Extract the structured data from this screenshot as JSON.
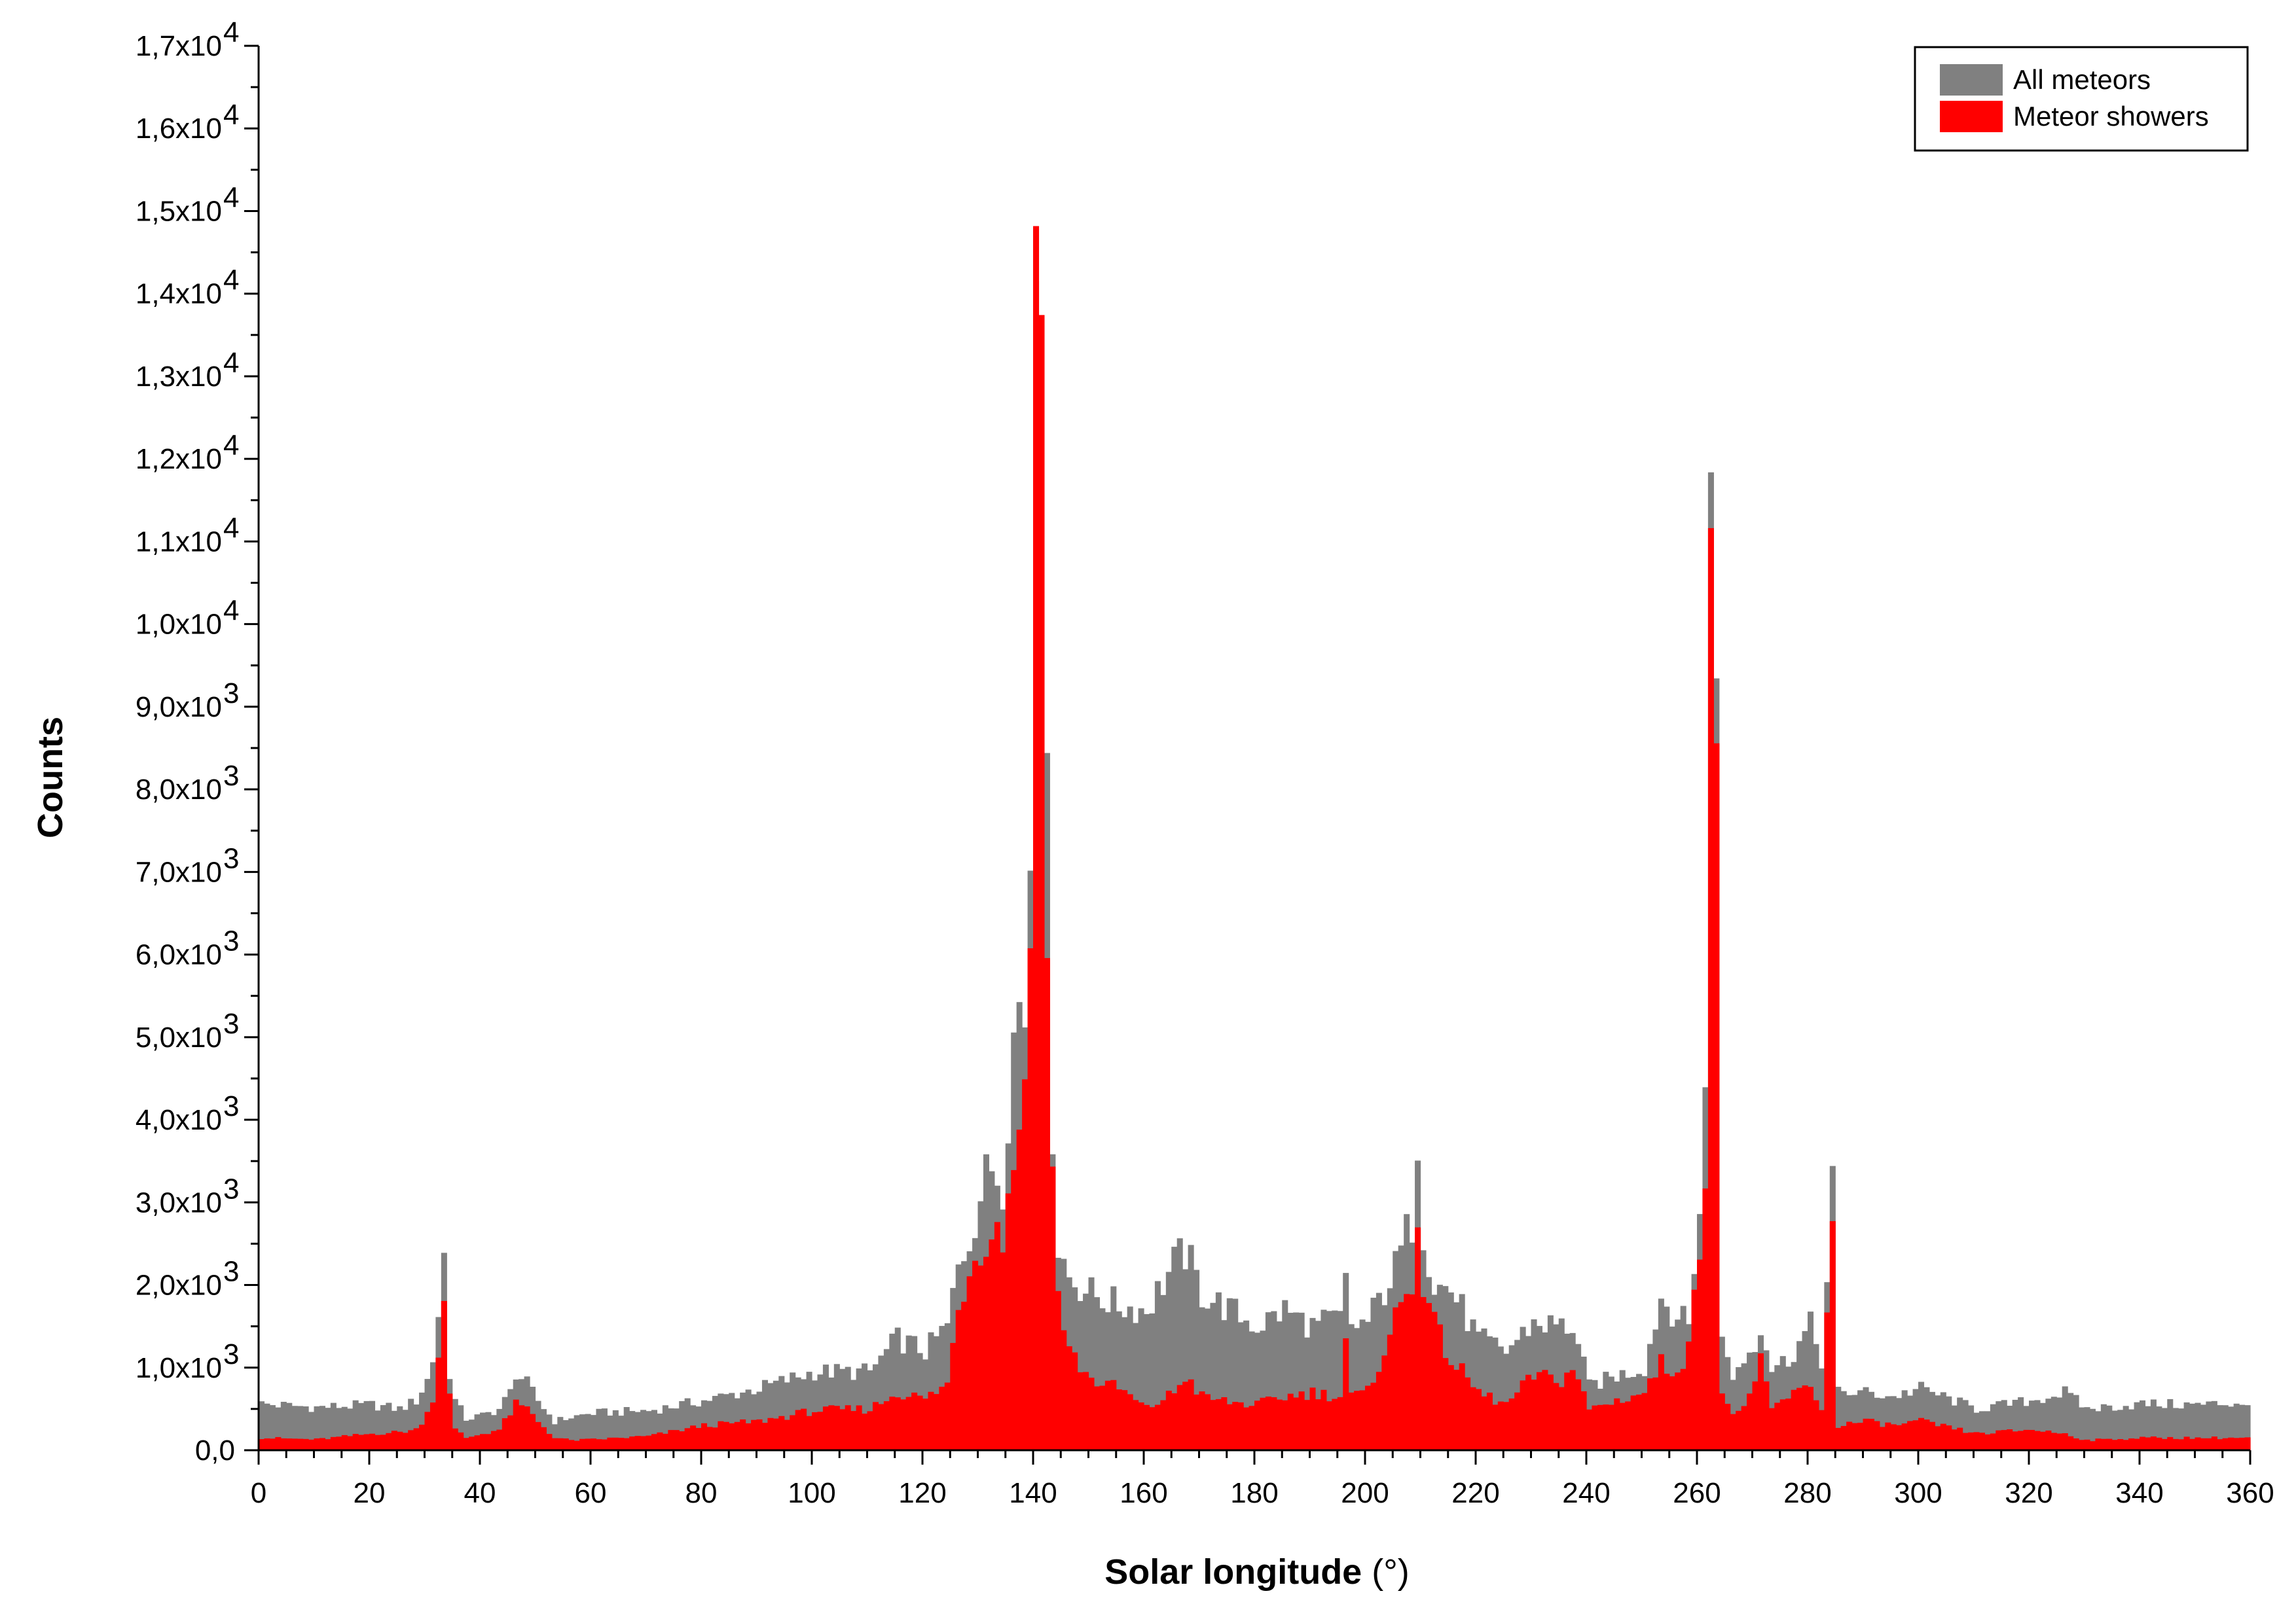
{
  "chart_data": {
    "type": "bar",
    "subtype": "overlaid-histogram",
    "xlabel": "Solar longitude",
    "xlabel_unit": "(°)",
    "ylabel": "Counts",
    "xlim": [
      0,
      360
    ],
    "ylim": [
      0,
      17000
    ],
    "bin_width": 1,
    "x_ticks": [
      0,
      20,
      40,
      60,
      80,
      100,
      120,
      140,
      160,
      180,
      200,
      220,
      240,
      260,
      280,
      300,
      320,
      340,
      360
    ],
    "y_ticks": [
      {
        "value": 0,
        "label": "0,0",
        "exp": ""
      },
      {
        "value": 1000,
        "label": "1,0x10",
        "exp": "3"
      },
      {
        "value": 2000,
        "label": "2,0x10",
        "exp": "3"
      },
      {
        "value": 3000,
        "label": "3,0x10",
        "exp": "3"
      },
      {
        "value": 4000,
        "label": "4,0x10",
        "exp": "3"
      },
      {
        "value": 5000,
        "label": "5,0x10",
        "exp": "3"
      },
      {
        "value": 6000,
        "label": "6,0x10",
        "exp": "3"
      },
      {
        "value": 7000,
        "label": "7,0x10",
        "exp": "3"
      },
      {
        "value": 8000,
        "label": "8,0x10",
        "exp": "3"
      },
      {
        "value": 9000,
        "label": "9,0x10",
        "exp": "3"
      },
      {
        "value": 10000,
        "label": "1,0x10",
        "exp": "4"
      },
      {
        "value": 11000,
        "label": "1,1x10",
        "exp": "4"
      },
      {
        "value": 12000,
        "label": "1,2x10",
        "exp": "4"
      },
      {
        "value": 13000,
        "label": "1,3x10",
        "exp": "4"
      },
      {
        "value": 14000,
        "label": "1,4x10",
        "exp": "4"
      },
      {
        "value": 15000,
        "label": "1,5x10",
        "exp": "4"
      },
      {
        "value": 16000,
        "label": "1,6x10",
        "exp": "4"
      },
      {
        "value": 17000,
        "label": "1,7x10",
        "exp": "4"
      }
    ],
    "legend": {
      "position": "top-right",
      "entries": [
        {
          "name": "All meteors",
          "color": "#808080"
        },
        {
          "name": "Meteor showers",
          "color": "#ff0000"
        }
      ]
    },
    "series_profile_points": [
      {
        "name": "All meteors",
        "color": "#808080",
        "points": [
          [
            0,
            560
          ],
          [
            10,
            520
          ],
          [
            20,
            550
          ],
          [
            25,
            500
          ],
          [
            28,
            600
          ],
          [
            30,
            850
          ],
          [
            31,
            1100
          ],
          [
            32,
            1650
          ],
          [
            33,
            2350
          ],
          [
            34,
            950
          ],
          [
            35,
            600
          ],
          [
            37,
            380
          ],
          [
            40,
            420
          ],
          [
            43,
            500
          ],
          [
            45,
            700
          ],
          [
            46,
            950
          ],
          [
            48,
            800
          ],
          [
            50,
            600
          ],
          [
            53,
            350
          ],
          [
            56,
            400
          ],
          [
            60,
            450
          ],
          [
            70,
            480
          ],
          [
            80,
            600
          ],
          [
            90,
            750
          ],
          [
            100,
            950
          ],
          [
            110,
            950
          ],
          [
            115,
            1350
          ],
          [
            120,
            1200
          ],
          [
            124,
            1500
          ],
          [
            126,
            2200
          ],
          [
            128,
            2600
          ],
          [
            130,
            3100
          ],
          [
            132,
            3450
          ],
          [
            134,
            3300
          ],
          [
            135,
            4200
          ],
          [
            136,
            5000
          ],
          [
            137,
            5400
          ],
          [
            138,
            5300
          ],
          [
            139,
            7300
          ],
          [
            140,
            15800
          ],
          [
            141,
            15100
          ],
          [
            142,
            7600
          ],
          [
            143,
            4000
          ],
          [
            144,
            2500
          ],
          [
            146,
            2100
          ],
          [
            150,
            1900
          ],
          [
            155,
            1750
          ],
          [
            160,
            1700
          ],
          [
            165,
            2250
          ],
          [
            167,
            2400
          ],
          [
            170,
            1900
          ],
          [
            175,
            1700
          ],
          [
            180,
            1500
          ],
          [
            185,
            1700
          ],
          [
            190,
            1500
          ],
          [
            195,
            1600
          ],
          [
            196,
            2000
          ],
          [
            197,
            1500
          ],
          [
            200,
            1550
          ],
          [
            205,
            2200
          ],
          [
            208,
            2800
          ],
          [
            209,
            3850
          ],
          [
            210,
            2700
          ],
          [
            212,
            2000
          ],
          [
            215,
            1950
          ],
          [
            220,
            1350
          ],
          [
            225,
            1200
          ],
          [
            230,
            1550
          ],
          [
            235,
            1500
          ],
          [
            237,
            1500
          ],
          [
            240,
            780
          ],
          [
            245,
            900
          ],
          [
            250,
            1000
          ],
          [
            253,
            1850
          ],
          [
            255,
            1700
          ],
          [
            258,
            1500
          ],
          [
            259,
            2300
          ],
          [
            260,
            2900
          ],
          [
            261,
            4200
          ],
          [
            262,
            12100
          ],
          [
            263,
            10200
          ],
          [
            264,
            1300
          ],
          [
            266,
            900
          ],
          [
            270,
            1300
          ],
          [
            271,
            1550
          ],
          [
            273,
            1000
          ],
          [
            276,
            1100
          ],
          [
            278,
            1300
          ],
          [
            280,
            1500
          ],
          [
            282,
            1100
          ],
          [
            283,
            2000
          ],
          [
            284,
            3200
          ],
          [
            285,
            700
          ],
          [
            290,
            700
          ],
          [
            295,
            650
          ],
          [
            300,
            750
          ],
          [
            310,
            500
          ],
          [
            320,
            600
          ],
          [
            326,
            700
          ],
          [
            330,
            500
          ],
          [
            340,
            560
          ],
          [
            350,
            550
          ],
          [
            360,
            580
          ]
        ]
      },
      {
        "name": "Meteor showers",
        "color": "#ff0000",
        "points": [
          [
            0,
            150
          ],
          [
            10,
            130
          ],
          [
            20,
            200
          ],
          [
            25,
            220
          ],
          [
            28,
            250
          ],
          [
            30,
            450
          ],
          [
            31,
            650
          ],
          [
            32,
            1150
          ],
          [
            33,
            1950
          ],
          [
            34,
            650
          ],
          [
            35,
            250
          ],
          [
            37,
            150
          ],
          [
            40,
            200
          ],
          [
            43,
            250
          ],
          [
            45,
            450
          ],
          [
            46,
            550
          ],
          [
            48,
            500
          ],
          [
            50,
            350
          ],
          [
            53,
            150
          ],
          [
            56,
            120
          ],
          [
            60,
            130
          ],
          [
            70,
            170
          ],
          [
            80,
            300
          ],
          [
            90,
            350
          ],
          [
            100,
            480
          ],
          [
            110,
            500
          ],
          [
            115,
            700
          ],
          [
            120,
            620
          ],
          [
            124,
            800
          ],
          [
            126,
            1750
          ],
          [
            128,
            2200
          ],
          [
            130,
            2500
          ],
          [
            132,
            2700
          ],
          [
            134,
            2600
          ],
          [
            135,
            3100
          ],
          [
            136,
            3500
          ],
          [
            137,
            4200
          ],
          [
            138,
            4200
          ],
          [
            139,
            6400
          ],
          [
            140,
            14600
          ],
          [
            141,
            13900
          ],
          [
            142,
            6700
          ],
          [
            143,
            3300
          ],
          [
            144,
            1900
          ],
          [
            146,
            1200
          ],
          [
            150,
            850
          ],
          [
            155,
            750
          ],
          [
            160,
            500
          ],
          [
            165,
            700
          ],
          [
            167,
            900
          ],
          [
            170,
            650
          ],
          [
            175,
            580
          ],
          [
            180,
            550
          ],
          [
            185,
            650
          ],
          [
            190,
            700
          ],
          [
            195,
            650
          ],
          [
            196,
            1350
          ],
          [
            197,
            650
          ],
          [
            200,
            700
          ],
          [
            205,
            1600
          ],
          [
            208,
            2000
          ],
          [
            209,
            3000
          ],
          [
            210,
            2000
          ],
          [
            212,
            1500
          ],
          [
            215,
            1100
          ],
          [
            220,
            700
          ],
          [
            225,
            550
          ],
          [
            230,
            900
          ],
          [
            235,
            850
          ],
          [
            237,
            1000
          ],
          [
            240,
            500
          ],
          [
            245,
            600
          ],
          [
            250,
            700
          ],
          [
            253,
            1050
          ],
          [
            255,
            950
          ],
          [
            258,
            1200
          ],
          [
            259,
            1800
          ],
          [
            260,
            2500
          ],
          [
            261,
            3600
          ],
          [
            262,
            11300
          ],
          [
            263,
            9400
          ],
          [
            264,
            700
          ],
          [
            266,
            400
          ],
          [
            270,
            750
          ],
          [
            271,
            1050
          ],
          [
            273,
            500
          ],
          [
            276,
            650
          ],
          [
            278,
            700
          ],
          [
            280,
            800
          ],
          [
            282,
            500
          ],
          [
            283,
            1600
          ],
          [
            284,
            2750
          ],
          [
            285,
            300
          ],
          [
            290,
            350
          ],
          [
            295,
            300
          ],
          [
            300,
            350
          ],
          [
            310,
            200
          ],
          [
            320,
            250
          ],
          [
            326,
            200
          ],
          [
            330,
            120
          ],
          [
            340,
            150
          ],
          [
            350,
            150
          ],
          [
            360,
            150
          ]
        ]
      }
    ]
  }
}
